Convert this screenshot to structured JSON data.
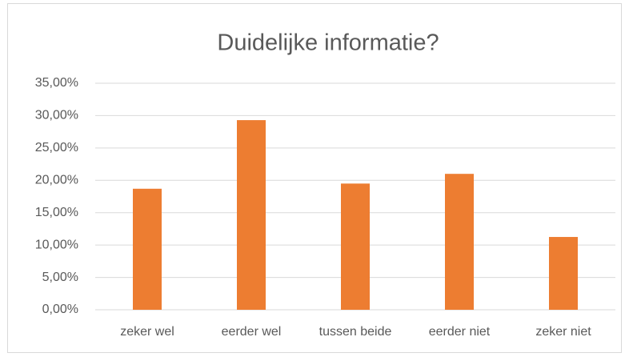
{
  "chart_data": {
    "type": "bar",
    "title": "Duidelijke informatie?",
    "categories": [
      "zeker wel",
      "eerder wel",
      "tussen beide",
      "eerder niet",
      "zeker niet"
    ],
    "values": [
      18.7,
      29.3,
      19.5,
      21.0,
      11.25
    ],
    "color": "#ed7d31",
    "ylim": [
      0,
      35
    ],
    "yticks": [
      {
        "value": 0,
        "label": "0,00%"
      },
      {
        "value": 5,
        "label": "5,00%"
      },
      {
        "value": 10,
        "label": "10,00%"
      },
      {
        "value": 15,
        "label": "15,00%"
      },
      {
        "value": 20,
        "label": "20,00%"
      },
      {
        "value": 25,
        "label": "25,00%"
      },
      {
        "value": 30,
        "label": "30,00%"
      },
      {
        "value": 35,
        "label": "35,00%"
      }
    ],
    "grid": true
  }
}
